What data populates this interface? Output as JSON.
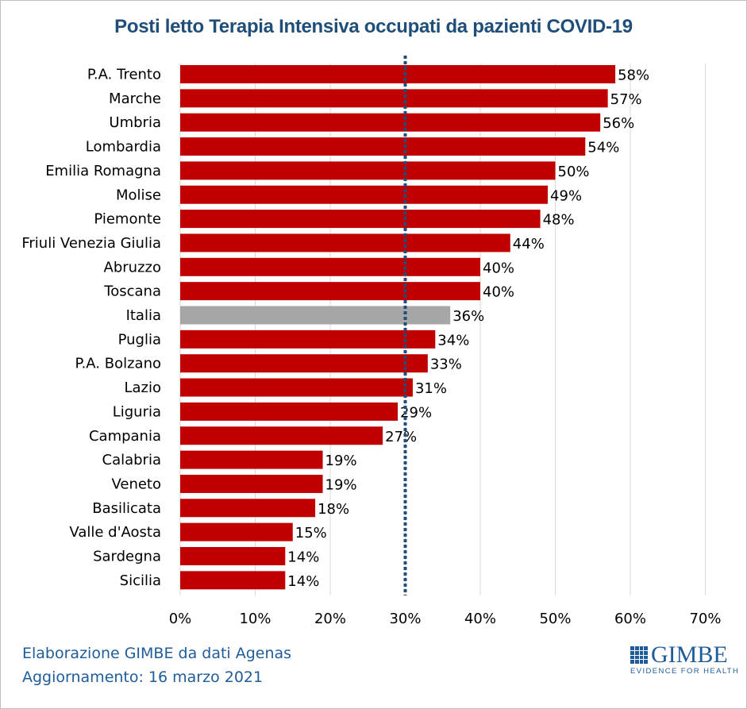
{
  "title": "Posti letto Terapia  Intensiva occupati da pazienti COVID-19",
  "footer": {
    "line1": "Elaborazione GIMBE da dati Agenas",
    "line2": "Aggiornamento: 16 marzo 2021"
  },
  "logo": {
    "name": "GIMBE",
    "tagline": "EVIDENCE FOR HEALTH"
  },
  "colors": {
    "bar": "#c00000",
    "highlight_bar": "#a6a6a6",
    "threshold_line": "#1f4e79",
    "title": "#1f4e79"
  },
  "chart_data": {
    "type": "bar",
    "orientation": "horizontal",
    "categories": [
      "P.A. Trento",
      "Marche",
      "Umbria",
      "Lombardia",
      "Emilia Romagna",
      "Molise",
      "Piemonte",
      "Friuli Venezia Giulia",
      "Abruzzo",
      "Toscana",
      "Italia",
      "Puglia",
      "P.A. Bolzano",
      "Lazio",
      "Liguria",
      "Campania",
      "Calabria",
      "Veneto",
      "Basilicata",
      "Valle d'Aosta",
      "Sardegna",
      "Sicilia"
    ],
    "values": [
      58,
      57,
      56,
      54,
      50,
      49,
      48,
      44,
      40,
      40,
      36,
      34,
      33,
      31,
      29,
      27,
      19,
      19,
      18,
      15,
      14,
      14
    ],
    "labels": [
      "58%",
      "57%",
      "56%",
      "54%",
      "50%",
      "49%",
      "48%",
      "44%",
      "40%",
      "40%",
      "36%",
      "34%",
      "33%",
      "31%",
      "29%",
      "27%",
      "19%",
      "19%",
      "18%",
      "15%",
      "14%",
      "14%"
    ],
    "highlight": "Italia",
    "xlim": [
      0,
      70
    ],
    "xticks": [
      0,
      10,
      20,
      30,
      40,
      50,
      60,
      70
    ],
    "xtick_labels": [
      "0%",
      "10%",
      "20%",
      "30%",
      "40%",
      "50%",
      "60%",
      "70%"
    ],
    "threshold": 30,
    "grid": true,
    "title": "Posti letto Terapia  Intensiva occupati da pazienti COVID-19",
    "xlabel": "",
    "ylabel": ""
  }
}
